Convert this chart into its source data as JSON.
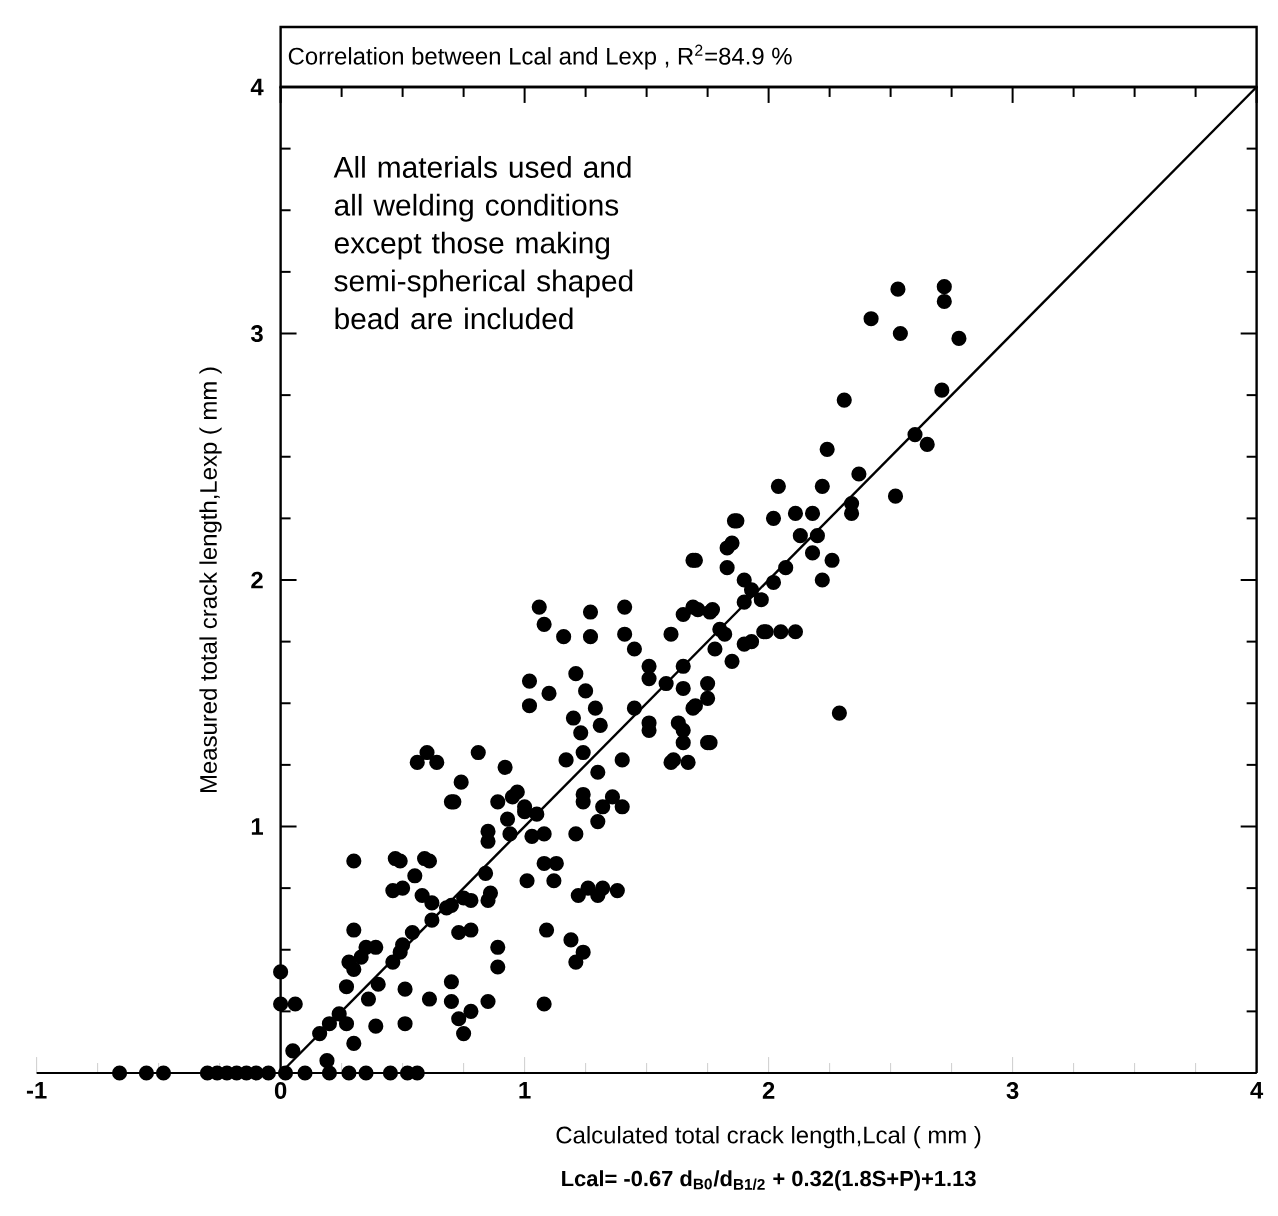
{
  "chart_data": {
    "type": "scatter",
    "title": "Correlation between Lcal and Lexp , R$^{2}$=84.9 %",
    "xlabel": "Calculated total crack length,Lcal ( mm )",
    "ylabel": "Measured total crack length,Lexp ( mm )",
    "annotations": [
      "All materials used and all welding conditions except those making semi-spherical shaped bead are included",
      "Lcal= -0.67 d$_{B0}$/d$_{B1/2}$ + 0.32(1.8S+P)+1.13"
    ],
    "xlim": [
      -1,
      4
    ],
    "ylim": [
      0,
      4
    ],
    "xticks": [
      -1,
      0,
      1,
      2,
      3,
      4
    ],
    "yticks": [
      {
        "value": 0,
        "label": null
      },
      1,
      2,
      3,
      4
    ],
    "grid": false,
    "series": [
      {
        "type": "scatter",
        "color": "#000000",
        "marker": "circle",
        "x": [
          -0.66,
          -0.55,
          -0.48,
          -0.3,
          -0.26,
          -0.22,
          -0.18,
          -0.14,
          -0.1,
          -0.05,
          0.02,
          0.1,
          0.2,
          0.28,
          0.35,
          0.45,
          0.52,
          0.56,
          0,
          0,
          0.06,
          0.05,
          0.19,
          0.3,
          0.3,
          0.27,
          0.3,
          0.33,
          0.35,
          0.28,
          0.16,
          0.2,
          0.24,
          0.27,
          0.3,
          0.39,
          0.51,
          0.39,
          0.46,
          0.5,
          0.54,
          0.49,
          0.49,
          0.61,
          0.46,
          0.5,
          0.55,
          0.58,
          0.62,
          0.7,
          0.75,
          0.84,
          0.85,
          0.62,
          0.73,
          0.78,
          0.89,
          0.89,
          0.7,
          0.7,
          0.73,
          0.75,
          0.78,
          0.85,
          0.61,
          0.51,
          0.4,
          0.36,
          1.09,
          1.08,
          1.19,
          1.21,
          1.24,
          1.01,
          1.12,
          1.13,
          1.32,
          1.38,
          1.21,
          1.3,
          0.85,
          0.89,
          0.93,
          0.97,
          1.03,
          1.0,
          0.74,
          0.7,
          0.47,
          0.59,
          0.56,
          0.6,
          0.64,
          0.81,
          0.71,
          0.92,
          0.95,
          1.0,
          1.05,
          0.85,
          0.94,
          1.08,
          1.08,
          1.22,
          1.26,
          1.3,
          1.32,
          1.36,
          1.4,
          1.06,
          1.08,
          1.16,
          1.27,
          1.27,
          1.41,
          1.41,
          1.45,
          1.51,
          1.02,
          1.02,
          1.1,
          1.21,
          1.25,
          1.29,
          1.2,
          1.23,
          1.31,
          1.17,
          1.24,
          1.3,
          1.4,
          1.24,
          1.24,
          1.45,
          1.51,
          1.58,
          1.65,
          1.51,
          1.6,
          1.69,
          1.69,
          1.76,
          1.69,
          1.75,
          1.63,
          1.6,
          1.67,
          1.75,
          1.78,
          1.82,
          1.85,
          1.8,
          1.83,
          1.83,
          1.87,
          1.9,
          1.9,
          2.02,
          1.98,
          2.05,
          1.9,
          2.53,
          2.72,
          2.72,
          2.42,
          2.54,
          2.78,
          2.71,
          2.31,
          2.6,
          2.65,
          2.24,
          2.37,
          2.52,
          2.04,
          2.22,
          2.34,
          2.34,
          2.11,
          2.18,
          2.13,
          2.2,
          1.86,
          1.85,
          1.7,
          2.07,
          2.18,
          2.26,
          2.22,
          2.02,
          1.93,
          1.97,
          1.71,
          1.77,
          1.65,
          1.99,
          2.11,
          1.93,
          1.65,
          1.75,
          1.7,
          2.29,
          1.65,
          1.65,
          1.76,
          1.61,
          1.51,
          0.68,
          0.78,
          0.86
        ],
        "values": [
          0,
          0,
          0,
          0,
          0,
          0,
          0,
          0,
          0,
          0,
          0,
          0,
          0,
          0,
          0,
          0,
          0,
          0,
          0.41,
          0.28,
          0.28,
          0.09,
          0.05,
          0.86,
          0.58,
          0.35,
          0.42,
          0.47,
          0.51,
          0.45,
          0.16,
          0.2,
          0.24,
          0.2,
          0.12,
          0.19,
          0.2,
          0.51,
          0.45,
          0.52,
          0.57,
          0.49,
          0.86,
          0.86,
          0.74,
          0.75,
          0.8,
          0.72,
          0.69,
          0.68,
          0.71,
          0.81,
          0.7,
          0.62,
          0.57,
          0.58,
          0.51,
          0.43,
          0.37,
          0.29,
          0.22,
          0.16,
          0.25,
          0.29,
          0.3,
          0.34,
          0.36,
          0.3,
          0.58,
          0.28,
          0.54,
          0.45,
          0.49,
          0.78,
          0.78,
          0.85,
          0.75,
          0.74,
          0.97,
          1.02,
          0.98,
          1.1,
          1.03,
          1.14,
          0.96,
          1.06,
          1.18,
          1.1,
          0.87,
          0.87,
          1.26,
          1.3,
          1.26,
          1.3,
          1.1,
          1.24,
          1.12,
          1.08,
          1.05,
          0.94,
          0.97,
          0.97,
          0.85,
          0.72,
          0.75,
          0.72,
          1.08,
          1.12,
          1.08,
          1.89,
          1.82,
          1.77,
          1.87,
          1.77,
          1.89,
          1.78,
          1.72,
          1.65,
          1.59,
          1.49,
          1.54,
          1.62,
          1.55,
          1.48,
          1.44,
          1.38,
          1.41,
          1.27,
          1.3,
          1.22,
          1.27,
          1.13,
          1.1,
          1.48,
          1.6,
          1.58,
          1.56,
          1.42,
          1.78,
          2.08,
          1.89,
          1.87,
          1.48,
          1.58,
          1.42,
          1.26,
          1.26,
          1.34,
          1.72,
          1.78,
          1.67,
          1.8,
          2.05,
          2.13,
          2.24,
          1.91,
          2.0,
          2.25,
          1.79,
          1.79,
          1.74,
          3.18,
          3.19,
          3.13,
          3.06,
          3.0,
          2.98,
          2.77,
          2.73,
          2.59,
          2.55,
          2.53,
          2.43,
          2.34,
          2.38,
          2.38,
          2.31,
          2.27,
          2.27,
          2.27,
          2.18,
          2.18,
          2.24,
          2.15,
          2.08,
          2.05,
          2.11,
          2.08,
          2.0,
          1.99,
          1.96,
          1.92,
          1.88,
          1.88,
          1.86,
          1.79,
          1.79,
          1.75,
          1.65,
          1.52,
          1.49,
          1.46,
          1.39,
          1.34,
          1.34,
          1.27,
          1.39,
          0.67,
          0.7,
          0.73
        ]
      },
      {
        "type": "line",
        "color": "#000000",
        "line_style": "solid",
        "x": [
          0,
          4
        ],
        "values": [
          0,
          4
        ]
      }
    ]
  }
}
